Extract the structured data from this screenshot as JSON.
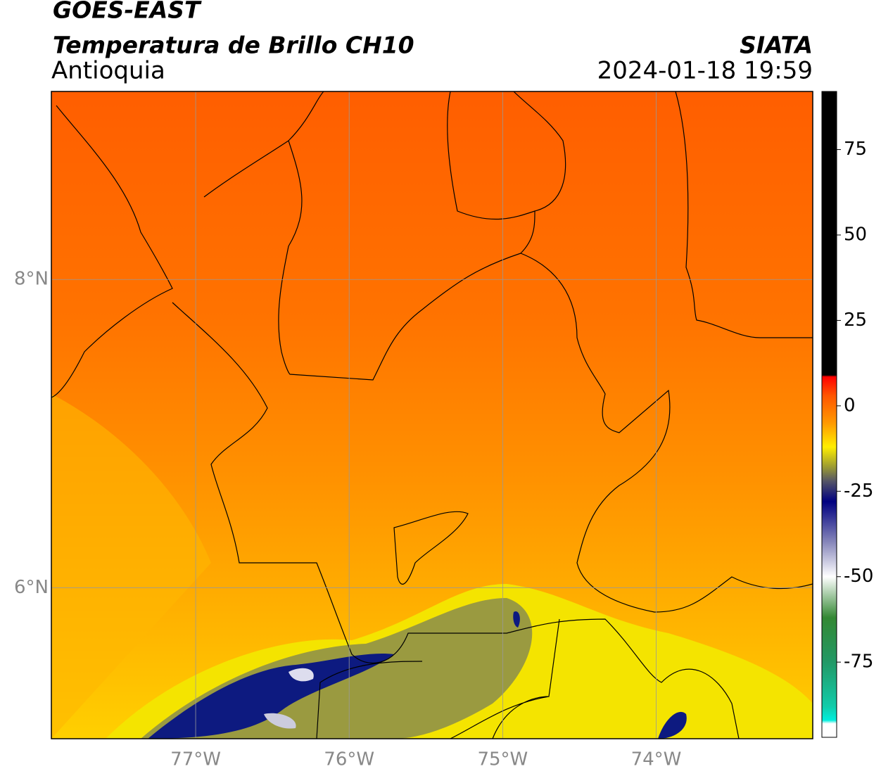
{
  "header": {
    "satellite": "GOES-EAST",
    "product": "Temperatura de Brillo CH10",
    "region": "Antioquia",
    "source": "SIATA",
    "timestamp": "2024-01-18 19:59"
  },
  "map": {
    "xlim": [
      -77.94,
      -72.98
    ],
    "ylim": [
      5.02,
      9.22
    ],
    "xticks": [
      {
        "value": -77,
        "label": "77°W"
      },
      {
        "value": -76,
        "label": "76°W"
      },
      {
        "value": -75,
        "label": "75°W"
      },
      {
        "value": -74,
        "label": "74°W"
      }
    ],
    "yticks": [
      {
        "value": 6,
        "label": "6°N"
      },
      {
        "value": 8,
        "label": "8°N"
      }
    ],
    "grid": true
  },
  "colorbar": {
    "lim": [
      -97,
      92
    ],
    "ticks": [
      -75,
      -50,
      -25,
      0,
      25,
      50,
      75
    ],
    "stops": [
      {
        "value": 92,
        "color": "#000000"
      },
      {
        "value": 9,
        "color": "#000000"
      },
      {
        "value": 8.5,
        "color": "#ff0000"
      },
      {
        "value": 3,
        "color": "#ff5500"
      },
      {
        "value": -5,
        "color": "#ff9900"
      },
      {
        "value": -12,
        "color": "#ffee00"
      },
      {
        "value": -18,
        "color": "#999933"
      },
      {
        "value": -22,
        "color": "#555566"
      },
      {
        "value": -28,
        "color": "#000080"
      },
      {
        "value": -40,
        "color": "#8888bb"
      },
      {
        "value": -50,
        "color": "#ffffff"
      },
      {
        "value": -62,
        "color": "#338833"
      },
      {
        "value": -75,
        "color": "#229966"
      },
      {
        "value": -88,
        "color": "#11ccaa"
      },
      {
        "value": -92,
        "color": "#00eedd"
      },
      {
        "value": -93,
        "color": "#ffffff"
      },
      {
        "value": -97,
        "color": "#ffffff"
      }
    ]
  }
}
